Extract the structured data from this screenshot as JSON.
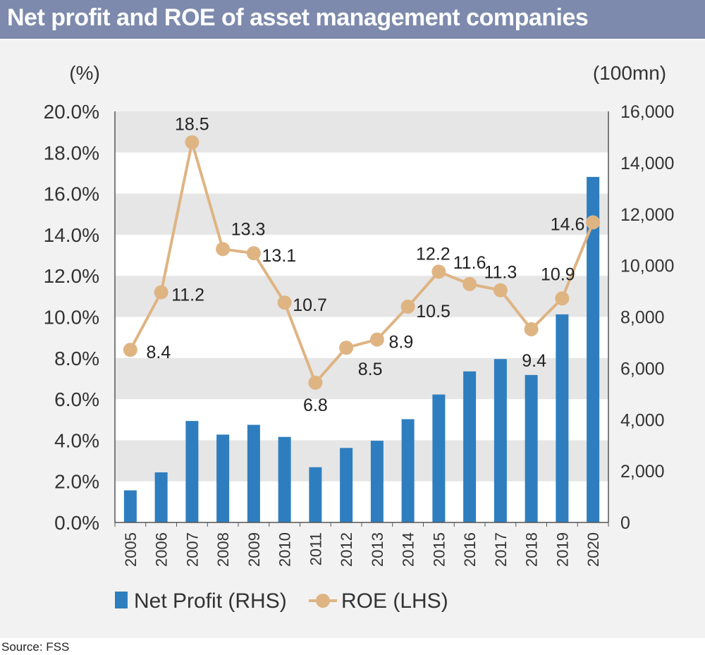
{
  "header": {
    "title": "Net profit and ROE of asset management companies"
  },
  "footer": {
    "source": "Source: FSS"
  },
  "colors": {
    "bar": "#2e7ebf",
    "line": "#dfb483",
    "marker": "#dfb483",
    "header_bg": "#7d8aad",
    "panel_bg": "#f2f2f2",
    "band": "#e6e6e6"
  },
  "chart_data": {
    "type": "bar+line",
    "title": "Net profit and ROE of asset management companies",
    "categories": [
      "2005",
      "2006",
      "2007",
      "2008",
      "2009",
      "2010",
      "2011",
      "2012",
      "2013",
      "2014",
      "2015",
      "2016",
      "2017",
      "2018",
      "2019",
      "2020"
    ],
    "series": [
      {
        "name": "Net Profit (RHS)",
        "type": "bar",
        "axis": "right",
        "values": [
          1250,
          1950,
          3950,
          3420,
          3800,
          3330,
          2150,
          2900,
          3180,
          4020,
          4980,
          5880,
          6360,
          5740,
          8100,
          13450
        ]
      },
      {
        "name": "ROE (LHS)",
        "type": "line",
        "axis": "left",
        "values": [
          8.4,
          11.2,
          18.5,
          13.3,
          13.1,
          10.7,
          6.8,
          8.5,
          8.9,
          10.5,
          12.2,
          11.6,
          11.3,
          9.4,
          10.9,
          14.6
        ],
        "labels": [
          "8.4",
          "11.2",
          "18.5",
          "13.3",
          "13.1",
          "10.7",
          "6.8",
          "8.5",
          "8.9",
          "10.5",
          "12.2",
          "11.6",
          "11.3",
          "9.4",
          "10.9",
          "14.6"
        ]
      }
    ],
    "left_axis": {
      "unit": "(%)",
      "range": [
        0,
        20
      ],
      "ticks": [
        "0.0%",
        "2.0%",
        "4.0%",
        "6.0%",
        "8.0%",
        "10.0%",
        "12.0%",
        "14.0%",
        "16.0%",
        "18.0%",
        "20.0%"
      ]
    },
    "right_axis": {
      "unit": "(100mn)",
      "range": [
        0,
        16000
      ],
      "ticks": [
        "0",
        "2,000",
        "4,000",
        "6,000",
        "8,000",
        "10,000",
        "12,000",
        "14,000",
        "16,000"
      ]
    },
    "legend": {
      "position": "bottom",
      "items": [
        "Net Profit (RHS)",
        "ROE (LHS)"
      ]
    },
    "grid": "alternating horizontal bands"
  }
}
